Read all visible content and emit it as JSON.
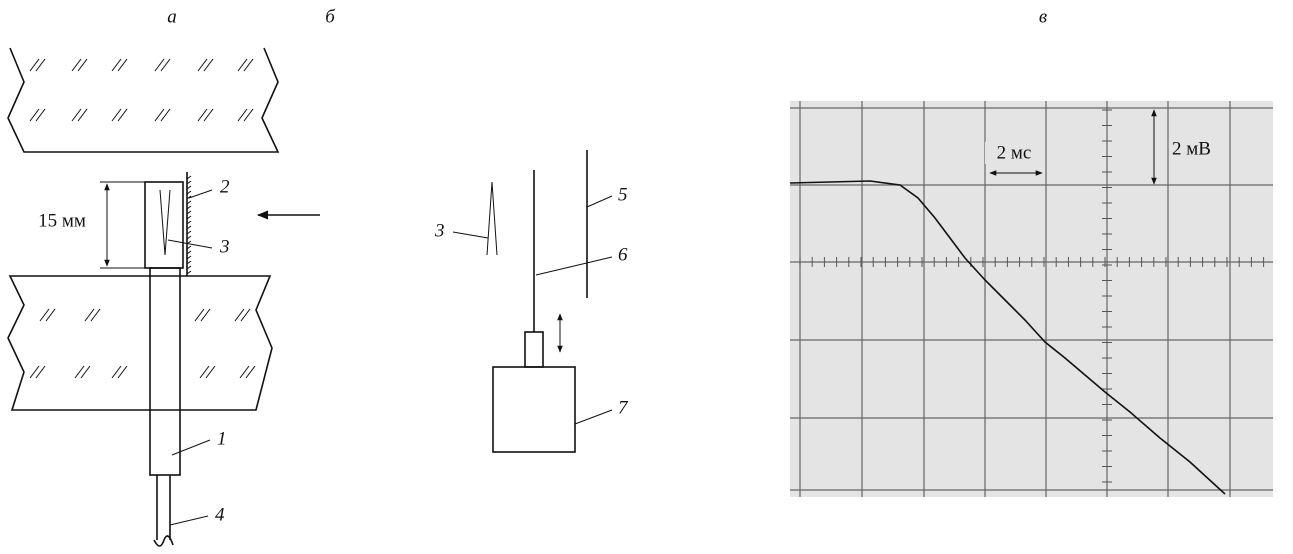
{
  "panels": {
    "a": {
      "label": "а",
      "parts": [
        "1",
        "2",
        "3",
        "4"
      ],
      "dimension": "15 мм"
    },
    "b": {
      "label": "б",
      "parts": [
        "3",
        "5",
        "6",
        "7"
      ]
    },
    "c": {
      "label": "в",
      "time_scale": "2 мс",
      "voltage_scale": "2 мВ"
    }
  }
}
